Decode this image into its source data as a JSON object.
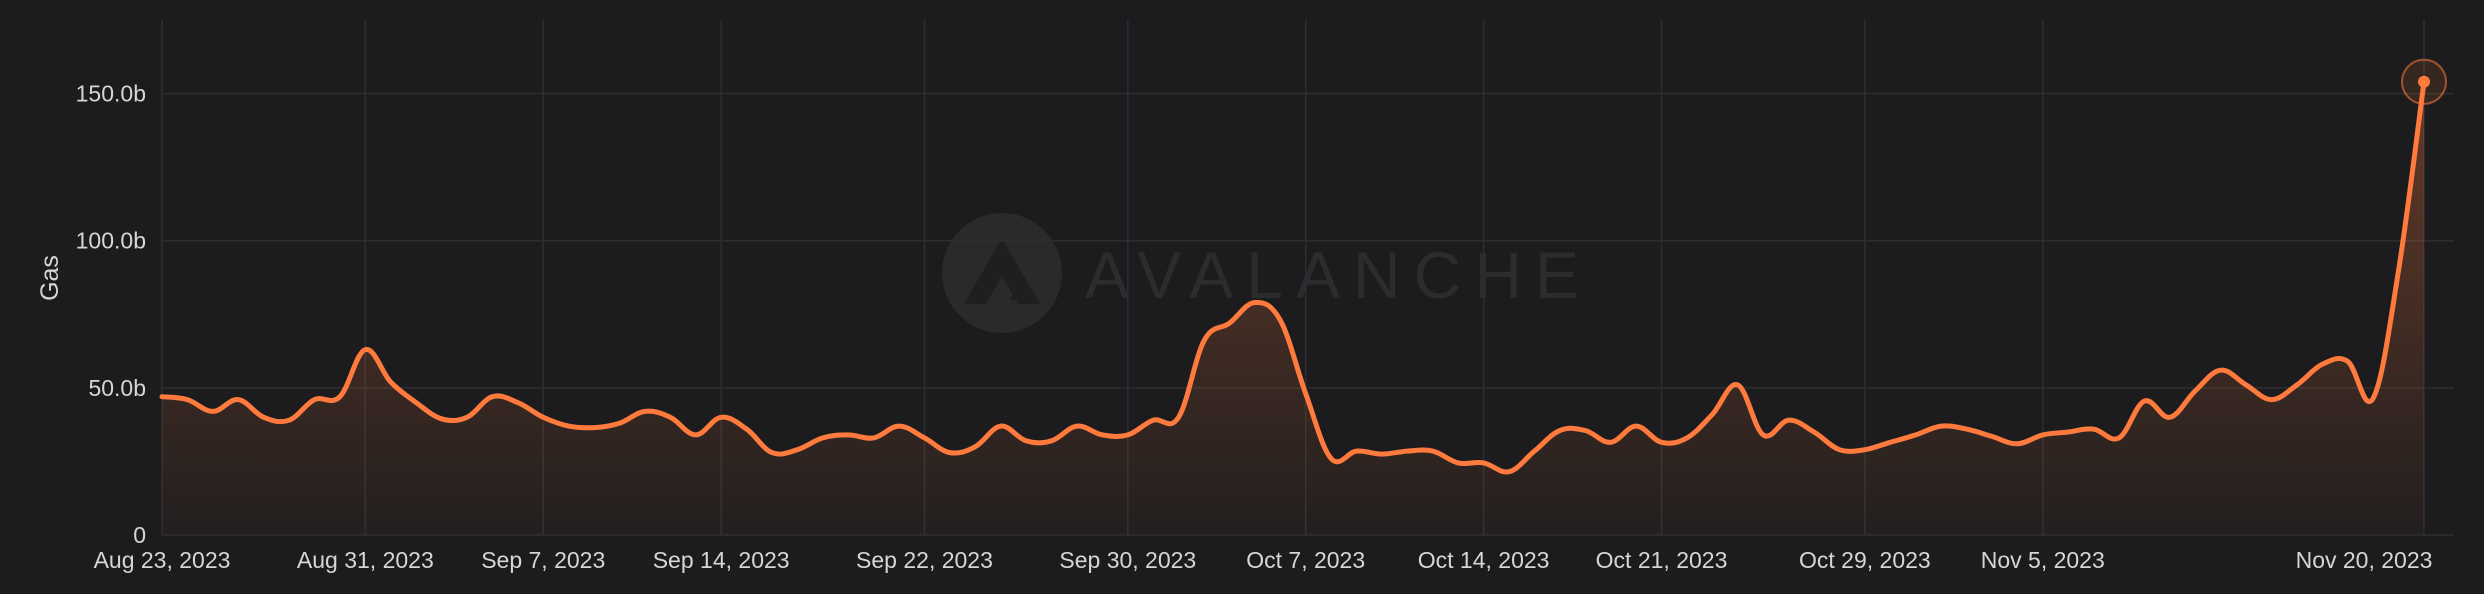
{
  "watermark": {
    "text": "AVALANCHE",
    "icon": "avalanche-logo-icon"
  },
  "colors": {
    "background": "#1c1c1e",
    "line": "#ff7a3d",
    "grid": "#2e2e31",
    "text": "#d6d6d6"
  },
  "chart_data": {
    "type": "area",
    "title": "",
    "xlabel": "",
    "ylabel": "Gas",
    "ylim": [
      0,
      175000000000
    ],
    "yticks": [
      0,
      50000000000,
      100000000000,
      150000000000
    ],
    "ytick_labels": [
      "0",
      "50.0b",
      "100.0b",
      "150.0b"
    ],
    "xlim": [
      "2023-08-23",
      "2023-11-20"
    ],
    "xticks": [
      "2023-08-23",
      "2023-08-31",
      "2023-09-07",
      "2023-09-14",
      "2023-09-22",
      "2023-09-30",
      "2023-10-07",
      "2023-10-14",
      "2023-10-21",
      "2023-10-29",
      "2023-11-05",
      "2023-11-20"
    ],
    "xtick_labels": [
      "Aug 23, 2023",
      "Aug 31, 2023",
      "Sep 7, 2023",
      "Sep 14, 2023",
      "Sep 22, 2023",
      "Sep 30, 2023",
      "Oct 7, 2023",
      "Oct 14, 2023",
      "Oct 21, 2023",
      "Oct 29, 2023",
      "Nov 5, 2023",
      "Nov 20, 2023"
    ],
    "grid": true,
    "legend": "none",
    "highlight_last_point": true,
    "series": [
      {
        "x": [
          "2023-08-23",
          "2023-08-24",
          "2023-08-25",
          "2023-08-26",
          "2023-08-27",
          "2023-08-28",
          "2023-08-29",
          "2023-08-30",
          "2023-08-31",
          "2023-09-01",
          "2023-09-02",
          "2023-09-03",
          "2023-09-04",
          "2023-09-05",
          "2023-09-06",
          "2023-09-07",
          "2023-09-08",
          "2023-09-09",
          "2023-09-10",
          "2023-09-11",
          "2023-09-12",
          "2023-09-13",
          "2023-09-14",
          "2023-09-15",
          "2023-09-16",
          "2023-09-17",
          "2023-09-18",
          "2023-09-19",
          "2023-09-20",
          "2023-09-21",
          "2023-09-22",
          "2023-09-23",
          "2023-09-24",
          "2023-09-25",
          "2023-09-26",
          "2023-09-27",
          "2023-09-28",
          "2023-09-29",
          "2023-09-30",
          "2023-10-01",
          "2023-10-02",
          "2023-10-03",
          "2023-10-04",
          "2023-10-05",
          "2023-10-06",
          "2023-10-07",
          "2023-10-08",
          "2023-10-09",
          "2023-10-10",
          "2023-10-11",
          "2023-10-12",
          "2023-10-13",
          "2023-10-14",
          "2023-10-15",
          "2023-10-16",
          "2023-10-17",
          "2023-10-18",
          "2023-10-19",
          "2023-10-20",
          "2023-10-21",
          "2023-10-22",
          "2023-10-23",
          "2023-10-24",
          "2023-10-25",
          "2023-10-26",
          "2023-10-27",
          "2023-10-28",
          "2023-10-29",
          "2023-10-30",
          "2023-10-31",
          "2023-11-01",
          "2023-11-02",
          "2023-11-03",
          "2023-11-04",
          "2023-11-05",
          "2023-11-06",
          "2023-11-07",
          "2023-11-08",
          "2023-11-09",
          "2023-11-10",
          "2023-11-11",
          "2023-11-12",
          "2023-11-13",
          "2023-11-14",
          "2023-11-15",
          "2023-11-16",
          "2023-11-17",
          "2023-11-18",
          "2023-11-19",
          "2023-11-20"
        ],
        "values": [
          47000000000,
          46000000000,
          42000000000,
          46000000000,
          40000000000,
          39000000000,
          46000000000,
          47000000000,
          63000000000,
          52000000000,
          45000000000,
          39500000000,
          40000000000,
          47000000000,
          45000000000,
          40000000000,
          37000000000,
          36500000000,
          38000000000,
          42000000000,
          40000000000,
          34000000000,
          40000000000,
          36000000000,
          28000000000,
          29000000000,
          33000000000,
          34000000000,
          33000000000,
          37000000000,
          33000000000,
          28000000000,
          30000000000,
          37000000000,
          32000000000,
          32000000000,
          37000000000,
          34000000000,
          34000000000,
          39000000000,
          40000000000,
          66000000000,
          72000000000,
          79000000000,
          73000000000,
          48000000000,
          26000000000,
          28500000000,
          27500000000,
          28500000000,
          28500000000,
          24500000000,
          24500000000,
          21500000000,
          28500000000,
          35500000000,
          35500000000,
          31500000000,
          37000000000,
          31500000000,
          33000000000,
          41000000000,
          51000000000,
          34000000000,
          39000000000,
          35000000000,
          29000000000,
          29000000000,
          31500000000,
          34000000000,
          37000000000,
          36000000000,
          33500000000,
          31000000000,
          34000000000,
          35000000000,
          36000000000,
          33000000000,
          45500000000,
          40000000000,
          49000000000,
          56000000000,
          51000000000,
          46000000000,
          51000000000,
          58000000000,
          59000000000,
          46500000000,
          90000000000,
          154000000000
        ]
      }
    ]
  }
}
